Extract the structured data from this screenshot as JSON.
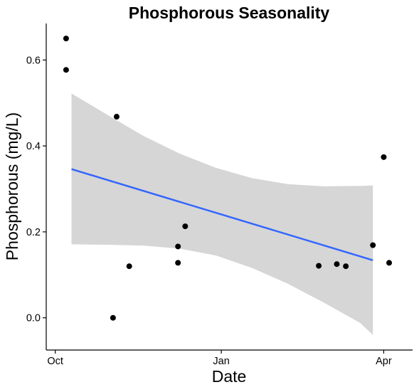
{
  "chart_data": {
    "type": "scatter",
    "title": "Phosphorous Seasonality",
    "xlabel": "Date",
    "ylabel": "Phosphorous (mg/L)",
    "x_axis_type": "date",
    "xlim": [
      "2016-09-26",
      "2017-04-17"
    ],
    "ylim": [
      -0.075,
      0.685
    ],
    "x_ticks": [
      {
        "date": "2016-10-01",
        "label": "Oct"
      },
      {
        "date": "2017-01-01",
        "label": "Jan"
      },
      {
        "date": "2017-04-01",
        "label": "Apr"
      }
    ],
    "y_ticks": [
      {
        "value": 0.0,
        "label": "0.0"
      },
      {
        "value": 0.2,
        "label": "0.2"
      },
      {
        "value": 0.4,
        "label": "0.4"
      },
      {
        "value": 0.6,
        "label": "0.6"
      }
    ],
    "points": [
      {
        "x": "2016-10-07",
        "y": 0.65
      },
      {
        "x": "2016-10-07",
        "y": 0.577
      },
      {
        "x": "2016-11-02",
        "y": 0.0
      },
      {
        "x": "2016-11-04",
        "y": 0.468
      },
      {
        "x": "2016-11-11",
        "y": 0.12
      },
      {
        "x": "2016-12-08",
        "y": 0.128
      },
      {
        "x": "2016-12-08",
        "y": 0.166
      },
      {
        "x": "2016-12-12",
        "y": 0.213
      },
      {
        "x": "2017-02-24",
        "y": 0.121
      },
      {
        "x": "2017-03-06",
        "y": 0.125
      },
      {
        "x": "2017-03-11",
        "y": 0.12
      },
      {
        "x": "2017-03-26",
        "y": 0.169
      },
      {
        "x": "2017-04-01",
        "y": 0.374
      },
      {
        "x": "2017-04-04",
        "y": 0.128
      }
    ],
    "trend_line": {
      "method": "linear",
      "color": "#3366ff",
      "start": {
        "x": "2016-10-10",
        "y": 0.346
      },
      "end": {
        "x": "2017-03-26",
        "y": 0.134
      }
    },
    "confidence_band": {
      "color": "#d6d6d6",
      "x": [
        "2016-10-10",
        "2016-10-30",
        "2016-11-19",
        "2016-12-09",
        "2016-12-29",
        "2017-01-18",
        "2017-02-07",
        "2017-02-27",
        "2017-03-19",
        "2017-03-26"
      ],
      "upper": [
        0.522,
        0.472,
        0.423,
        0.382,
        0.349,
        0.325,
        0.311,
        0.306,
        0.307,
        0.308
      ],
      "lower": [
        0.171,
        0.17,
        0.168,
        0.161,
        0.145,
        0.116,
        0.079,
        0.035,
        -0.012,
        -0.04
      ]
    },
    "grid": false,
    "legend": "none",
    "point_color": "#000000"
  }
}
